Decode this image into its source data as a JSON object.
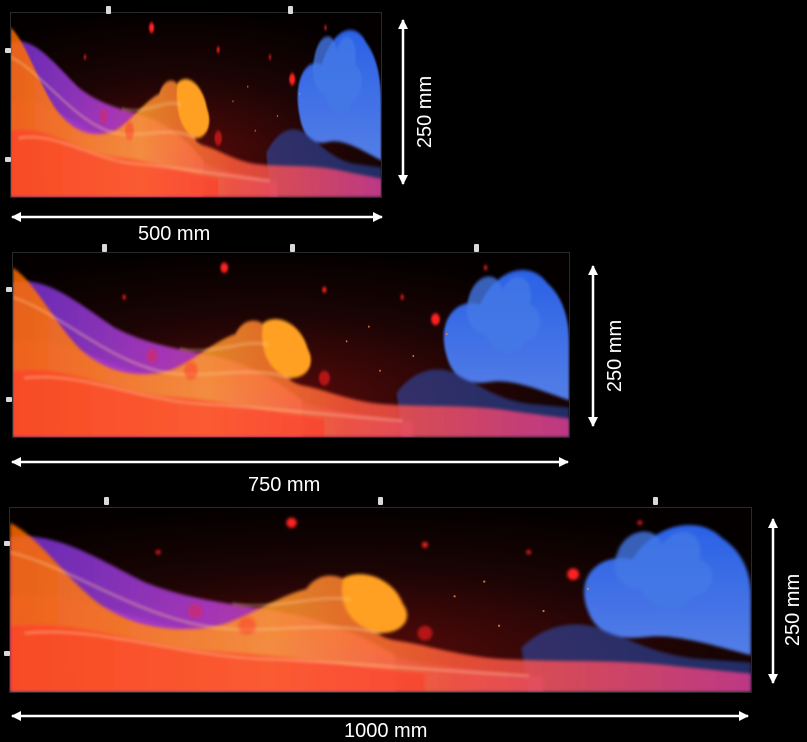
{
  "panels": [
    {
      "id": "small",
      "width_label": "500 mm",
      "height_label": "250 mm"
    },
    {
      "id": "medium",
      "width_label": "750 mm",
      "height_label": "250 mm"
    },
    {
      "id": "large",
      "width_label": "1000 mm",
      "height_label": "250 mm"
    }
  ],
  "artwork": {
    "description_colors": {
      "background": "#000000",
      "flame_orange": "#ff7a1a",
      "flame_red": "#e0301e",
      "flame_purple": "#8a3cff",
      "flame_pink": "#ff4fb0",
      "smoke_blue": "#3a7bff",
      "ember_red": "#ff2020"
    }
  },
  "colors": {
    "arrow": "#ffffff",
    "peg": "#d9d9d9"
  }
}
